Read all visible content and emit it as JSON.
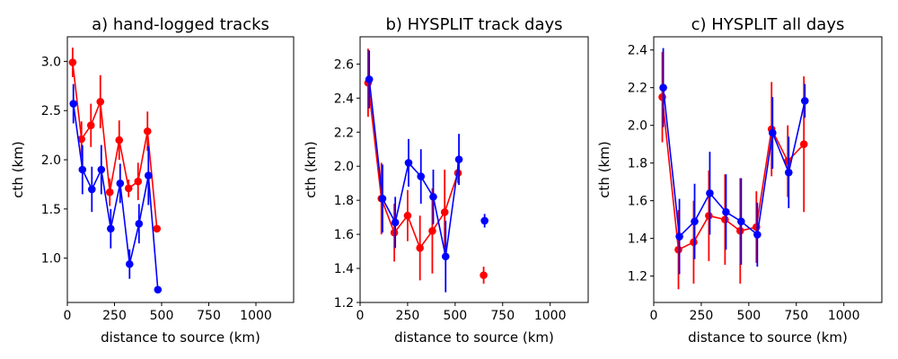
{
  "colors": {
    "red": "#ff0000",
    "blue": "#0000ff"
  },
  "chart_data": [
    {
      "type": "line",
      "title": "a) hand-logged tracks",
      "xlabel": "distance to source (km)",
      "ylabel": "cth (km)",
      "xlim": [
        0,
        1200
      ],
      "ylim": [
        0.55,
        3.25
      ],
      "xticks": [
        0,
        250,
        500,
        750,
        1000
      ],
      "xtick_labels": [
        "0",
        "250",
        "500",
        "750",
        "1000"
      ],
      "yticks": [
        1.0,
        1.5,
        2.0,
        2.5,
        3.0
      ],
      "ytick_labels": [
        "1.0",
        "1.5",
        "2.0",
        "2.5",
        "3.0"
      ],
      "series": [
        {
          "name": "red",
          "color": "#ff0000",
          "x": [
            28,
            75,
            125,
            175,
            225,
            275,
            325,
            375,
            425,
            475
          ],
          "y": [
            2.99,
            2.21,
            2.35,
            2.59,
            1.67,
            2.2,
            1.71,
            1.78,
            2.29,
            1.3
          ],
          "err": [
            0.15,
            0.18,
            0.22,
            0.27,
            0.14,
            0.2,
            0.09,
            0.19,
            0.2,
            0.0
          ]
        },
        {
          "name": "blue",
          "color": "#0000ff",
          "x": [
            32,
            80,
            130,
            180,
            230,
            280,
            330,
            380,
            430,
            480
          ],
          "y": [
            2.57,
            1.9,
            1.7,
            1.9,
            1.3,
            1.76,
            0.94,
            1.35,
            1.84,
            0.68
          ],
          "err": [
            0.2,
            0.25,
            0.23,
            0.25,
            0.2,
            0.2,
            0.15,
            0.2,
            0.3,
            0.0
          ]
        }
      ]
    },
    {
      "type": "line",
      "title": "b) HYSPLIT track days",
      "xlabel": "distance to source (km)",
      "ylabel": "cth (km)",
      "xlim": [
        0,
        1200
      ],
      "ylim": [
        1.2,
        2.76
      ],
      "xticks": [
        0,
        250,
        500,
        750,
        1000
      ],
      "xtick_labels": [
        "0",
        "250",
        "500",
        "750",
        "1000"
      ],
      "yticks": [
        1.2,
        1.4,
        1.6,
        1.8,
        2.0,
        2.2,
        2.4,
        2.6
      ],
      "ytick_labels": [
        "1.2",
        "1.4",
        "1.6",
        "1.8",
        "2.0",
        "2.2",
        "2.4",
        "2.6"
      ],
      "series": [
        {
          "name": "red",
          "color": "#ff0000",
          "x": [
            42,
            112,
            180,
            250,
            315,
            380,
            445,
            515
          ],
          "y": [
            2.49,
            1.81,
            1.61,
            1.71,
            1.52,
            1.62,
            1.73,
            1.96
          ],
          "err": [
            0.2,
            0.21,
            0.17,
            0.15,
            0.19,
            0.25,
            0.25,
            0.06
          ],
          "extra": {
            "x": 650,
            "y": 1.36,
            "err": 0.05
          }
        },
        {
          "name": "blue",
          "color": "#0000ff",
          "x": [
            48,
            118,
            185,
            255,
            320,
            385,
            450,
            520
          ],
          "y": [
            2.51,
            1.81,
            1.67,
            2.02,
            1.94,
            1.82,
            1.47,
            2.04
          ],
          "err": [
            0.17,
            0.2,
            0.15,
            0.14,
            0.16,
            0.16,
            0.21,
            0.15
          ],
          "extra": {
            "x": 655,
            "y": 1.68,
            "err": 0.04
          }
        }
      ]
    },
    {
      "type": "line",
      "title": "c) HYSPLIT all days",
      "xlabel": "distance to source (km)",
      "ylabel": "cth (km)",
      "xlim": [
        0,
        1200
      ],
      "ylim": [
        1.06,
        2.47
      ],
      "xticks": [
        0,
        250,
        500,
        750,
        1000
      ],
      "xtick_labels": [
        "0",
        "250",
        "500",
        "750",
        "1000"
      ],
      "yticks": [
        1.2,
        1.4,
        1.6,
        1.8,
        2.0,
        2.2,
        2.4
      ],
      "ytick_labels": [
        "1.2",
        "1.4",
        "1.6",
        "1.8",
        "2.0",
        "2.2",
        "2.4"
      ],
      "series": [
        {
          "name": "red",
          "color": "#ff0000",
          "x": [
            45,
            130,
            210,
            290,
            375,
            455,
            540,
            620,
            705,
            790
          ],
          "y": [
            2.15,
            1.34,
            1.38,
            1.52,
            1.5,
            1.44,
            1.46,
            1.98,
            1.81,
            1.9
          ],
          "err": [
            0.24,
            0.21,
            0.22,
            0.24,
            0.24,
            0.28,
            0.19,
            0.25,
            0.19,
            0.36
          ]
        },
        {
          "name": "blue",
          "color": "#0000ff",
          "x": [
            50,
            135,
            215,
            295,
            380,
            460,
            545,
            625,
            710,
            795
          ],
          "y": [
            2.2,
            1.41,
            1.49,
            1.64,
            1.54,
            1.49,
            1.42,
            1.96,
            1.75,
            2.13
          ],
          "err": [
            0.21,
            0.2,
            0.2,
            0.22,
            0.2,
            0.23,
            0.17,
            0.19,
            0.19,
            0.09
          ]
        }
      ]
    }
  ]
}
